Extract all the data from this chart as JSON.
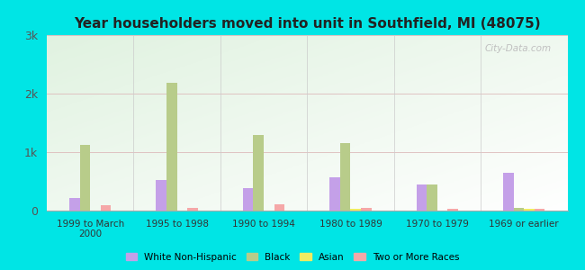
{
  "title": "Year householders moved into unit in Southfield, MI (48075)",
  "categories": [
    "1999 to March\n2000",
    "1995 to 1998",
    "1990 to 1994",
    "1980 to 1989",
    "1970 to 1979",
    "1969 or earlier"
  ],
  "series": {
    "White Non-Hispanic": [
      220,
      530,
      390,
      570,
      450,
      650
    ],
    "Black": [
      1130,
      2190,
      1290,
      1150,
      450,
      50
    ],
    "Asian": [
      5,
      5,
      5,
      30,
      5,
      30
    ],
    "Two or More Races": [
      90,
      50,
      110,
      50,
      35,
      30
    ]
  },
  "colors": {
    "White Non-Hispanic": "#c4a0e8",
    "Black": "#b8cc8a",
    "Asian": "#f0ec60",
    "Two or More Races": "#f5a8a8"
  },
  "ylim": [
    0,
    3000
  ],
  "yticks": [
    0,
    1000,
    2000,
    3000
  ],
  "ytick_labels": [
    "0",
    "1k",
    "2k",
    "3k"
  ],
  "background_color": "#00e5e5",
  "watermark": "City-Data.com",
  "bar_width": 0.12
}
